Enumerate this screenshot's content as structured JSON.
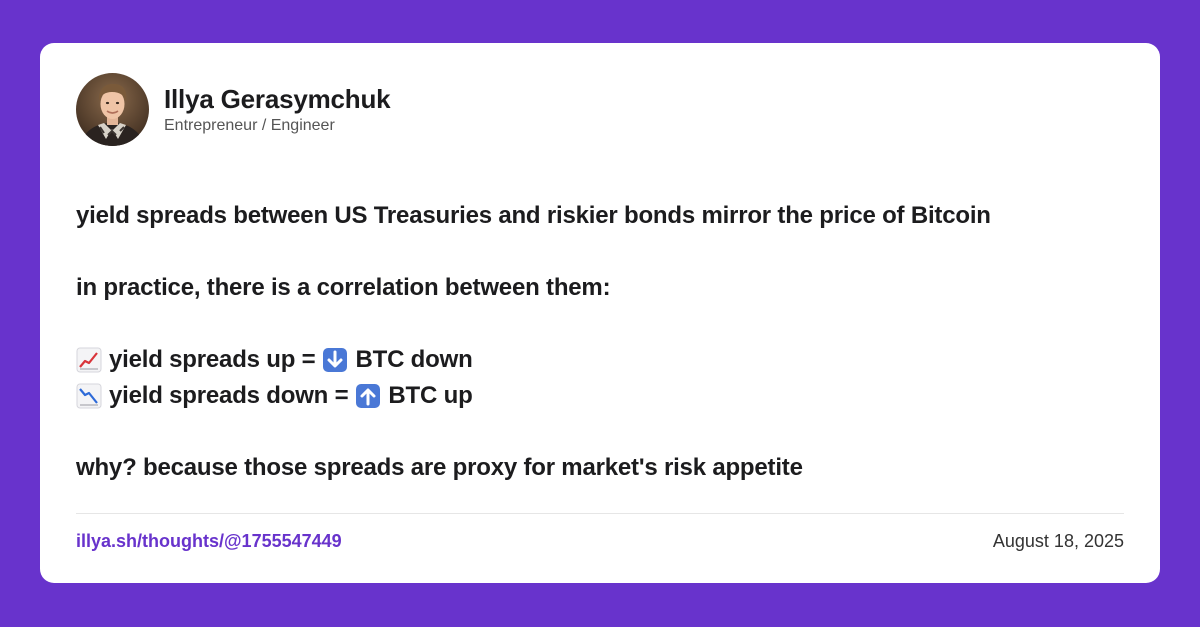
{
  "colors": {
    "background": "#6833cc",
    "card": "#ffffff",
    "text": "#1c1c1e",
    "link": "#6833cc"
  },
  "author": {
    "name": "Illya Gerasymchuk",
    "role": "Entrepreneur / Engineer",
    "avatar_icon": "profile-photo"
  },
  "post": {
    "line1": "yield spreads between US Treasuries and riskier bonds mirror the price of Bitcoin",
    "line2": "in practice, there is a correlation between them:",
    "line3_left": "yield spreads up =",
    "line3_right": "BTC down",
    "line3_icons": [
      "chart-increasing-icon",
      "down-arrow-icon"
    ],
    "line4_left": "yield spreads down =",
    "line4_right": "BTC up",
    "line4_icons": [
      "chart-decreasing-icon",
      "up-arrow-icon"
    ],
    "line5": "why? because those spreads are proxy for market's risk appetite"
  },
  "footer": {
    "link": "illya.sh/thoughts/@1755547449",
    "date": "August 18, 2025"
  }
}
